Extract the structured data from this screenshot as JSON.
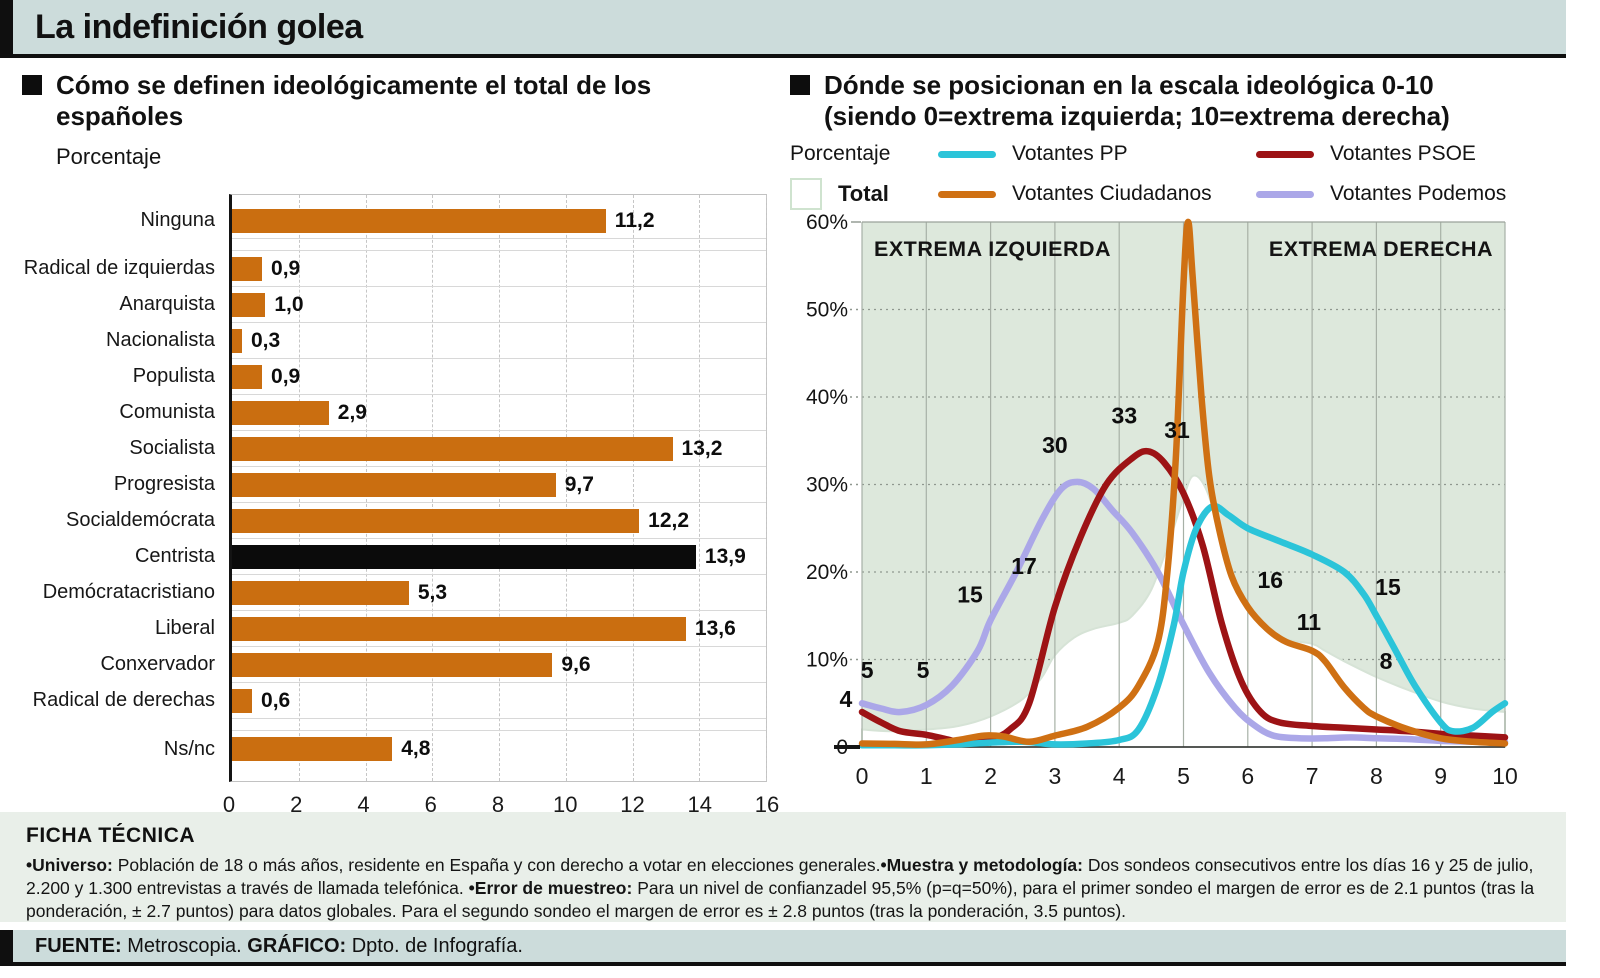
{
  "page": {
    "title": "La indefinición golea"
  },
  "sections": {
    "left": {
      "heading": "Cómo se definen ideológicamente el total de los españoles",
      "unit": "Porcentaje"
    },
    "right": {
      "heading": "Dónde se posicionan en la escala ideológica 0-10 (siendo 0=extrema izquierda; 10=extrema derecha)",
      "unit": "Porcentaje"
    }
  },
  "colors": {
    "band_bg": "#ccdcdb",
    "ficha_bg": "#e9efe9",
    "plot_green": "#dde8dc",
    "bar_orange": "#ca6e10",
    "bar_black": "#0b0b0b",
    "pp": "#2bc4d9",
    "psoe": "#9d1315",
    "ciudadanos": "#cf7013",
    "podemos": "#aba7e8",
    "total_fill": "#ffffff",
    "total_stroke": "#d6e3d6"
  },
  "ficha": {
    "title": "FICHA TÉCNICA",
    "segments": [
      {
        "b": 1,
        "t": "•Universo: "
      },
      {
        "b": 0,
        "t": "Población de 18 o más años, residente en España y con derecho a votar en elecciones generales."
      },
      {
        "b": 1,
        "t": "•Muestra y metodología: "
      },
      {
        "b": 0,
        "t": "Dos sondeos consecutivos entre los días 16 y 25 de julio, 2.200 y 1.300 entrevistas a través de llamada telefónica. "
      },
      {
        "b": 1,
        "t": "•Error de muestreo: "
      },
      {
        "b": 0,
        "t": "Para un nivel de confianzadel 95,5% (p=q=50%), para el primer sondeo el margen de error es de 2.1 puntos (tras la ponderación, ± 2.7 puntos) para datos globales. Para el segundo sondeo el margen de error es ± 2.8 puntos (tras la ponderación, 3.5 puntos)."
      }
    ]
  },
  "source": {
    "segments": [
      {
        "b": 1,
        "t": "FUENTE: "
      },
      {
        "b": 0,
        "t": "Metroscopia. "
      },
      {
        "b": 1,
        "t": "GRÁFICO: "
      },
      {
        "b": 0,
        "t": "Dpto. de Infografía."
      }
    ]
  },
  "chart_data": [
    {
      "type": "bar",
      "orientation": "horizontal",
      "title": "Cómo se definen ideológicamente el total de los españoles",
      "xlabel": "Porcentaje",
      "xlim": [
        0,
        16
      ],
      "xticks": [
        0,
        2,
        4,
        6,
        8,
        10,
        12,
        14,
        16
      ],
      "categories": [
        "Ninguna",
        "Radical de izquierdas",
        "Anarquista",
        "Nacionalista",
        "Populista",
        "Comunista",
        "Socialista",
        "Progresista",
        "Socialdemócrata",
        "Centrista",
        "Demócratacristiano",
        "Liberal",
        "Conxervador",
        "Radical de derechas",
        "Ns/nc"
      ],
      "values": [
        11.2,
        0.9,
        1.0,
        0.3,
        0.9,
        2.9,
        13.2,
        9.7,
        12.2,
        13.9,
        5.3,
        13.6,
        9.6,
        0.6,
        4.8
      ],
      "value_labels": [
        "11,2",
        "0,9",
        "1,0",
        "0,3",
        "0,9",
        "2,9",
        "13,2",
        "9,7",
        "12,2",
        "13,9",
        "5,3",
        "13,6",
        "9,6",
        "0,6",
        "4,8"
      ],
      "highlight_index": 9,
      "gap_after": [
        0,
        13
      ],
      "grid": "dashed-vertical"
    },
    {
      "type": "line",
      "title": "Dónde se posicionan en la escala ideológica 0-10 (siendo 0=extrema izquierda; 10=extrema derecha)",
      "ylabel": "Porcentaje",
      "xlim": [
        0,
        10
      ],
      "ylim": [
        0,
        60
      ],
      "xticks": [
        "0",
        "1",
        "2",
        "3",
        "4",
        "5",
        "6",
        "7",
        "8",
        "9",
        "10"
      ],
      "yticks": [
        "0",
        "10%",
        "20%",
        "30%",
        "40%",
        "50%",
        "60%"
      ],
      "region_labels": {
        "left": "EXTREMA IZQUIERDA",
        "right": "EXTREMA DERECHA"
      },
      "legend_position": "top",
      "total": {
        "name": "Total",
        "points": [
          [
            0,
            2
          ],
          [
            0.5,
            1.8
          ],
          [
            1,
            2
          ],
          [
            1.5,
            2.4
          ],
          [
            2,
            3.5
          ],
          [
            2.5,
            5.5
          ],
          [
            2.8,
            8
          ],
          [
            3,
            10.5
          ],
          [
            3.3,
            12.5
          ],
          [
            3.6,
            13.5
          ],
          [
            4,
            14.2
          ],
          [
            4.2,
            15
          ],
          [
            4.5,
            18
          ],
          [
            4.8,
            24
          ],
          [
            5,
            28.5
          ],
          [
            5.15,
            31
          ],
          [
            5.35,
            29.5
          ],
          [
            5.6,
            24
          ],
          [
            5.8,
            19
          ],
          [
            6,
            16
          ],
          [
            6.3,
            13.5
          ],
          [
            6.6,
            12.3
          ],
          [
            7,
            11.8
          ],
          [
            7.2,
            11
          ],
          [
            7.5,
            9.8
          ],
          [
            8,
            8
          ],
          [
            8.5,
            6.5
          ],
          [
            9,
            5.2
          ],
          [
            9.5,
            4.4
          ],
          [
            10,
            4
          ]
        ]
      },
      "series": [
        {
          "name": "Votantes Podemos",
          "color": "#aba7e8",
          "points": [
            [
              0,
              5
            ],
            [
              0.3,
              4.4
            ],
            [
              0.6,
              4
            ],
            [
              1,
              4.8
            ],
            [
              1.4,
              7
            ],
            [
              1.8,
              11
            ],
            [
              2,
              14.5
            ],
            [
              2.4,
              20
            ],
            [
              2.8,
              26
            ],
            [
              3.1,
              29.5
            ],
            [
              3.35,
              30.3
            ],
            [
              3.6,
              29.5
            ],
            [
              3.9,
              27
            ],
            [
              4.2,
              24.5
            ],
            [
              4.6,
              20
            ],
            [
              5,
              14
            ],
            [
              5.4,
              8.5
            ],
            [
              5.8,
              4.5
            ],
            [
              6.1,
              2.5
            ],
            [
              6.4,
              1.3
            ],
            [
              6.8,
              1
            ],
            [
              7.2,
              1
            ],
            [
              7.6,
              1.1
            ],
            [
              8,
              1
            ],
            [
              8.5,
              0.9
            ],
            [
              9,
              0.7
            ],
            [
              9.5,
              0.6
            ],
            [
              10,
              0.6
            ]
          ]
        },
        {
          "name": "Votantes PSOE",
          "color": "#9d1315",
          "points": [
            [
              0,
              4
            ],
            [
              0.3,
              2.8
            ],
            [
              0.6,
              1.8
            ],
            [
              1,
              1.4
            ],
            [
              1.3,
              0.9
            ],
            [
              1.6,
              0.5
            ],
            [
              2,
              0.9
            ],
            [
              2.3,
              2
            ],
            [
              2.6,
              5
            ],
            [
              3,
              16
            ],
            [
              3.4,
              24
            ],
            [
              3.8,
              30
            ],
            [
              4.2,
              33
            ],
            [
              4.45,
              33.8
            ],
            [
              4.7,
              32.5
            ],
            [
              5,
              29
            ],
            [
              5.3,
              23
            ],
            [
              5.6,
              14
            ],
            [
              5.9,
              7.5
            ],
            [
              6.2,
              4
            ],
            [
              6.5,
              2.8
            ],
            [
              7,
              2.4
            ],
            [
              7.5,
              2.2
            ],
            [
              8,
              2
            ],
            [
              8.5,
              1.8
            ],
            [
              9,
              1.5
            ],
            [
              9.5,
              1.3
            ],
            [
              10,
              1.1
            ]
          ]
        },
        {
          "name": "Votantes PP",
          "color": "#2bc4d9",
          "points": [
            [
              0,
              0.2
            ],
            [
              0.5,
              0.2
            ],
            [
              1,
              0.2
            ],
            [
              1.5,
              0.3
            ],
            [
              2,
              0.5
            ],
            [
              2.5,
              0.6
            ],
            [
              3,
              0.3
            ],
            [
              3.5,
              0.4
            ],
            [
              4,
              0.8
            ],
            [
              4.3,
              2
            ],
            [
              4.6,
              7
            ],
            [
              4.85,
              14
            ],
            [
              5,
              20
            ],
            [
              5.2,
              25
            ],
            [
              5.45,
              27.5
            ],
            [
              5.7,
              26.5
            ],
            [
              6,
              25
            ],
            [
              6.5,
              23.5
            ],
            [
              7,
              22
            ],
            [
              7.5,
              20
            ],
            [
              7.8,
              17.5
            ],
            [
              8,
              15
            ],
            [
              8.3,
              11
            ],
            [
              8.6,
              7
            ],
            [
              9,
              2.8
            ],
            [
              9.2,
              1.8
            ],
            [
              9.5,
              2.2
            ],
            [
              9.8,
              4
            ],
            [
              10,
              5
            ]
          ]
        },
        {
          "name": "Votantes Ciudadanos",
          "color": "#cf7013",
          "points": [
            [
              0,
              0.4
            ],
            [
              0.5,
              0.35
            ],
            [
              1,
              0.3
            ],
            [
              1.5,
              0.8
            ],
            [
              1.9,
              1.3
            ],
            [
              2.2,
              1.2
            ],
            [
              2.6,
              0.6
            ],
            [
              3,
              1.3
            ],
            [
              3.5,
              2.3
            ],
            [
              4,
              4.5
            ],
            [
              4.3,
              7
            ],
            [
              4.6,
              12
            ],
            [
              4.75,
              20
            ],
            [
              4.88,
              33
            ],
            [
              5.0,
              53
            ],
            [
              5.07,
              60
            ],
            [
              5.14,
              54
            ],
            [
              5.28,
              40
            ],
            [
              5.4,
              31
            ],
            [
              5.55,
              25
            ],
            [
              5.75,
              19.5
            ],
            [
              6,
              16
            ],
            [
              6.3,
              13.5
            ],
            [
              6.6,
              12
            ],
            [
              7,
              11
            ],
            [
              7.2,
              9.8
            ],
            [
              7.5,
              6.8
            ],
            [
              7.8,
              4.5
            ],
            [
              8,
              3.5
            ],
            [
              8.5,
              2
            ],
            [
              9,
              1
            ],
            [
              9.5,
              0.6
            ],
            [
              10,
              0.4
            ]
          ]
        }
      ],
      "annotations": [
        {
          "series": "Votantes PSOE",
          "x": -0.15,
          "y": 4.6,
          "text": "4",
          "anchor": "end"
        },
        {
          "series": "Votantes Podemos",
          "x": 0.08,
          "y": 7.9,
          "text": "5"
        },
        {
          "series": "Votantes Podemos",
          "x": 0.95,
          "y": 7.9,
          "text": "5"
        },
        {
          "series": "Votantes Podemos",
          "x": 1.68,
          "y": 16.5,
          "text": "15"
        },
        {
          "series": "Votantes PSOE",
          "x": 2.52,
          "y": 19.8,
          "text": "17"
        },
        {
          "series": "Votantes Podemos",
          "x": 3.0,
          "y": 33.6,
          "text": "30"
        },
        {
          "series": "Votantes PSOE",
          "x": 4.08,
          "y": 37.0,
          "text": "33"
        },
        {
          "series": "Total",
          "x": 4.9,
          "y": 35.3,
          "text": "31"
        },
        {
          "series": "Votantes Ciudadanos",
          "x": 6.35,
          "y": 18.2,
          "text": "16"
        },
        {
          "series": "Votantes Ciudadanos",
          "x": 6.95,
          "y": 13.4,
          "text": "11"
        },
        {
          "series": "Votantes PP",
          "x": 8.18,
          "y": 17.4,
          "text": "15"
        },
        {
          "series": "Total",
          "x": 8.15,
          "y": 8.9,
          "text": "8"
        }
      ],
      "legend": [
        {
          "label": "Votantes PP",
          "color": "#2bc4d9"
        },
        {
          "label": "Votantes PSOE",
          "color": "#9d1315"
        },
        {
          "label": "Total",
          "type": "box"
        },
        {
          "label": "Votantes Ciudadanos",
          "color": "#cf7013"
        },
        {
          "label": "Votantes Podemos",
          "color": "#aba7e8"
        }
      ]
    }
  ]
}
